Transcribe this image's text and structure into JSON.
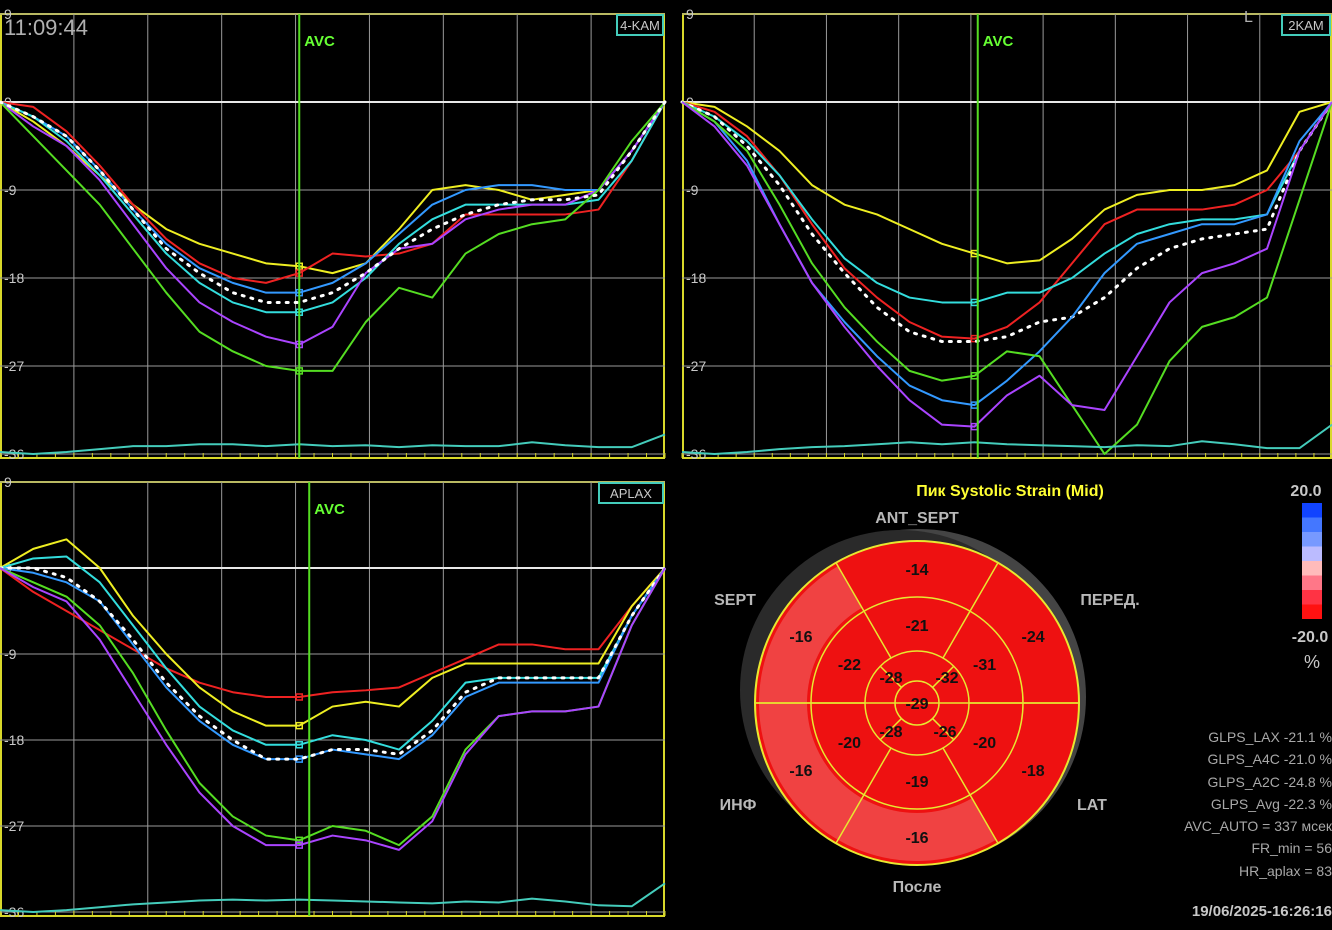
{
  "time_display": "11:09:44",
  "corner_marker": "L",
  "colors": {
    "panel_frame": "#d8d82a",
    "grid": "#9a9a9a",
    "avc_line": "#55dd22",
    "tag_border": "#44ccbb",
    "series": {
      "yellow": "#eeee22",
      "red": "#ee2222",
      "blue": "#3399ff",
      "cyan": "#33dddd",
      "purple": "#aa44ff",
      "green": "#55dd22",
      "white_dotted": "#ffffff",
      "ecg": "#44ccbb"
    },
    "bullseye_fill": "#ee1111",
    "bullseye_fill_light": "#f04848",
    "bullseye_line": "#e8e830",
    "scale": [
      "#1144ff",
      "#4477ff",
      "#7799ff",
      "#bbbbff",
      "#ffbbbb",
      "#ff7788",
      "#ff3344",
      "#ff1111"
    ]
  },
  "chart_data": [
    {
      "type": "line",
      "view_tag": "4-KAM",
      "marker_label": "AVC",
      "marker_x": 0.45,
      "ylim": [
        -36,
        9
      ],
      "y_ticks": [
        "9",
        "0",
        "-9",
        "-18",
        "-27",
        "-36"
      ],
      "x": [
        0,
        0.05,
        0.1,
        0.15,
        0.2,
        0.25,
        0.3,
        0.35,
        0.4,
        0.45,
        0.5,
        0.55,
        0.6,
        0.65,
        0.7,
        0.75,
        0.8,
        0.85,
        0.9,
        0.95,
        1.0
      ],
      "series": [
        {
          "color": "yellow",
          "values": [
            0,
            -2,
            -4.5,
            -7.5,
            -10.5,
            -13,
            -14.5,
            -15.5,
            -16.5,
            -16.8,
            -17.5,
            -16.5,
            -13,
            -9,
            -8.5,
            -9,
            -10,
            -9.5,
            -9,
            -5,
            0
          ]
        },
        {
          "color": "red",
          "values": [
            0,
            -0.5,
            -3,
            -6.5,
            -10.5,
            -14,
            -16.5,
            -18,
            -18.5,
            -17.5,
            -15.5,
            -15.8,
            -15.5,
            -14.5,
            -11.5,
            -11.5,
            -11.5,
            -11.5,
            -11,
            -6,
            0
          ]
        },
        {
          "color": "blue",
          "values": [
            0,
            -1.5,
            -3.5,
            -7,
            -11,
            -14.5,
            -17,
            -18.5,
            -19.5,
            -19.5,
            -18.5,
            -16.5,
            -13.5,
            -10.5,
            -9,
            -8.5,
            -8.5,
            -9,
            -9,
            -5,
            0
          ]
        },
        {
          "color": "cyan",
          "values": [
            0,
            -1.5,
            -4,
            -7.5,
            -11.5,
            -15.5,
            -18.5,
            -20.5,
            -21.5,
            -21.5,
            -20.5,
            -18,
            -14.5,
            -12,
            -10.5,
            -10.5,
            -10.5,
            -10.5,
            -10,
            -6,
            0
          ]
        },
        {
          "color": "purple",
          "values": [
            0,
            -2.5,
            -4.5,
            -8,
            -12.5,
            -17,
            -20.5,
            -22.5,
            -24,
            -24.8,
            -23,
            -17.5,
            -15,
            -14.5,
            -12,
            -11,
            -10.5,
            -10.5,
            -9,
            -5,
            0
          ]
        },
        {
          "color": "green",
          "values": [
            0,
            -3.5,
            -7,
            -10.5,
            -15,
            -19.5,
            -23.5,
            -25.5,
            -27,
            -27.5,
            -27.5,
            -22.5,
            -19,
            -20,
            -15.5,
            -13.5,
            -12.5,
            -12,
            -9,
            -4,
            0
          ]
        },
        {
          "color": "white_dotted",
          "values": [
            0,
            -1.5,
            -3.5,
            -7,
            -11,
            -15,
            -17.5,
            -19.5,
            -20.5,
            -20.5,
            -19.5,
            -17.5,
            -15,
            -13,
            -11.5,
            -10.5,
            -10,
            -10,
            -9.5,
            -5,
            0
          ]
        }
      ],
      "ecg": [
        -35.8,
        -36,
        -35.8,
        -35.5,
        -35.2,
        -35.2,
        -35,
        -35,
        -35.2,
        -35,
        -35.2,
        -35.1,
        -35.3,
        -35.1,
        -35.2,
        -35.2,
        -34.8,
        -35.1,
        -35.3,
        -35.3,
        -34
      ]
    },
    {
      "type": "line",
      "view_tag": "2KAM",
      "marker_label": "AVC",
      "marker_x": 0.455,
      "ylim": [
        -36,
        9
      ],
      "y_ticks": [
        "9",
        "0",
        "-9",
        "-18",
        "-27",
        "-36"
      ],
      "x": [
        0,
        0.05,
        0.1,
        0.15,
        0.2,
        0.25,
        0.3,
        0.35,
        0.4,
        0.45,
        0.5,
        0.55,
        0.6,
        0.65,
        0.7,
        0.75,
        0.8,
        0.85,
        0.9,
        0.95,
        1.0
      ],
      "series": [
        {
          "color": "yellow",
          "values": [
            0,
            -0.5,
            -2.5,
            -5,
            -8.5,
            -10.5,
            -11.5,
            -13,
            -14.5,
            -15.5,
            -16.5,
            -16.2,
            -14,
            -11,
            -9.5,
            -9,
            -9,
            -8.5,
            -7,
            -1,
            0
          ]
        },
        {
          "color": "red",
          "values": [
            0,
            -1,
            -3.5,
            -7.5,
            -12.5,
            -17,
            -20,
            -22.5,
            -24,
            -24.2,
            -23,
            -20.5,
            -16.5,
            -12.5,
            -11,
            -11,
            -11,
            -10.5,
            -9,
            -5,
            0
          ]
        },
        {
          "color": "cyan",
          "values": [
            0,
            -1.5,
            -4,
            -7.5,
            -12,
            -16,
            -18.5,
            -20,
            -20.5,
            -20.5,
            -19.5,
            -19.5,
            -18,
            -15.5,
            -13.5,
            -12.5,
            -12,
            -12,
            -11.5,
            -5,
            0
          ]
        },
        {
          "color": "white_dotted",
          "values": [
            0,
            -1.5,
            -4.5,
            -8.5,
            -13.5,
            -17.5,
            -21,
            -23.5,
            -24.5,
            -24.5,
            -24,
            -22.5,
            -22,
            -20,
            -17,
            -15,
            -14,
            -13.5,
            -13,
            -5,
            0
          ]
        },
        {
          "color": "blue",
          "values": [
            0,
            -2,
            -6,
            -12.5,
            -18.5,
            -22.5,
            -26,
            -29,
            -30.5,
            -31,
            -28.5,
            -25.5,
            -22,
            -17.5,
            -14.5,
            -13.5,
            -12.5,
            -12.5,
            -11.5,
            -4,
            0
          ]
        },
        {
          "color": "green",
          "values": [
            0,
            -2,
            -5,
            -10.5,
            -16.5,
            -21,
            -24.5,
            -27.5,
            -28.5,
            -28,
            -25.5,
            -26,
            -31,
            -36,
            -33,
            -26.5,
            -23,
            -22,
            -20,
            -10,
            0
          ]
        },
        {
          "color": "purple",
          "values": [
            0,
            -2.5,
            -6.5,
            -12.5,
            -18.5,
            -23,
            -27,
            -30.5,
            -33,
            -33.2,
            -30,
            -28,
            -31,
            -31.5,
            -26,
            -20.5,
            -17.5,
            -16.5,
            -15,
            -5,
            0
          ]
        }
      ],
      "ecg": [
        -35.8,
        -36,
        -35.8,
        -35.5,
        -35.3,
        -35.2,
        -35,
        -34.8,
        -35,
        -34.8,
        -35,
        -35.1,
        -35.2,
        -35.3,
        -35.1,
        -35.2,
        -34.7,
        -35,
        -35.4,
        -35.4,
        -33
      ]
    },
    {
      "type": "line",
      "view_tag": "APLAX",
      "marker_label": "AVC",
      "marker_x": 0.465,
      "ylim": [
        -36,
        9
      ],
      "y_ticks": [
        "9",
        "0",
        "-9",
        "-18",
        "-27",
        "-36"
      ],
      "x": [
        0,
        0.05,
        0.1,
        0.15,
        0.2,
        0.25,
        0.3,
        0.35,
        0.4,
        0.45,
        0.5,
        0.55,
        0.6,
        0.65,
        0.7,
        0.75,
        0.8,
        0.85,
        0.9,
        0.95,
        1.0
      ],
      "series": [
        {
          "color": "red",
          "values": [
            0,
            -2.5,
            -4.5,
            -6.5,
            -8.5,
            -10.5,
            -12,
            -13,
            -13.5,
            -13.5,
            -13,
            -12.8,
            -12.5,
            -11,
            -9.5,
            -8,
            -8,
            -8.5,
            -8.5,
            -4,
            0
          ]
        },
        {
          "color": "yellow",
          "values": [
            0,
            2,
            3,
            0,
            -5,
            -9,
            -12.5,
            -15,
            -16.5,
            -16.5,
            -14.5,
            -14,
            -14.5,
            -11.5,
            -10,
            -10,
            -10,
            -10,
            -10,
            -4,
            0
          ]
        },
        {
          "color": "cyan",
          "values": [
            0,
            1,
            1.2,
            -1.5,
            -6,
            -10.5,
            -14.5,
            -17,
            -18.5,
            -18.5,
            -17.5,
            -18,
            -19,
            -16,
            -12,
            -11.5,
            -11.5,
            -11.5,
            -11.5,
            -5,
            0
          ]
        },
        {
          "color": "blue",
          "values": [
            0,
            -0.5,
            -1.5,
            -3.5,
            -8,
            -12.5,
            -16,
            -18.5,
            -20,
            -20,
            -19,
            -19.5,
            -20,
            -17.5,
            -13.5,
            -12,
            -12,
            -12,
            -12,
            -5,
            0
          ]
        },
        {
          "color": "white_dotted",
          "values": [
            0,
            0,
            -1,
            -3.5,
            -7.5,
            -12,
            -15.5,
            -18,
            -20,
            -20,
            -19,
            -19,
            -19.5,
            -17,
            -13,
            -11.5,
            -11.5,
            -11.5,
            -11.5,
            -5,
            0
          ]
        },
        {
          "color": "green",
          "values": [
            0,
            -1.5,
            -3,
            -6,
            -11,
            -17,
            -22.5,
            -26,
            -28,
            -28.5,
            -27,
            -27.5,
            -29,
            -26,
            -19,
            -15.5,
            -15,
            -15,
            -14.5,
            -6,
            0
          ]
        },
        {
          "color": "purple",
          "values": [
            0,
            -2,
            -3.5,
            -7.5,
            -13,
            -18.5,
            -23.5,
            -27,
            -29,
            -29,
            -28,
            -28.5,
            -29.5,
            -26.5,
            -19.5,
            -15.5,
            -15,
            -15,
            -14.5,
            -6,
            0
          ]
        }
      ],
      "ecg": [
        -35.8,
        -36,
        -35.8,
        -35.5,
        -35.2,
        -35,
        -34.8,
        -34.7,
        -34.8,
        -34.7,
        -34.8,
        -34.9,
        -35,
        -35.1,
        -34.9,
        -35,
        -34.6,
        -34.9,
        -35.3,
        -35.4,
        -33
      ]
    }
  ],
  "bullseye": {
    "title": "Пик Systolic Strain (Mid)",
    "walls": {
      "top": "ANT_SEPT",
      "upper_left": "SEPT",
      "upper_right": "ПЕРЕД.",
      "lower_left": "ИНФ",
      "lower_right": "LAT",
      "bottom": "После"
    },
    "basal": [
      "-14",
      "-24",
      "-18",
      "-16",
      "-16",
      "-16"
    ],
    "mid": [
      "-21",
      "-31",
      "-20",
      "-19",
      "-20",
      "-22"
    ],
    "apical": [
      "-32",
      "-26",
      "-28",
      "-28"
    ],
    "apex": "-29"
  },
  "color_scale": {
    "max": "20.0",
    "min": "-20.0",
    "unit": "%"
  },
  "stats": [
    "GLPS_LAX  -21.1 %",
    "GLPS_A4C  -21.0 %",
    "GLPS_A2C  -24.8 %",
    "GLPS_Avg  -22.3 %",
    "AVC_AUTO = 337 мсек",
    "FR_min = 56",
    "HR_aplax = 83"
  ],
  "datetime": "19/06/2025-16:26:16"
}
